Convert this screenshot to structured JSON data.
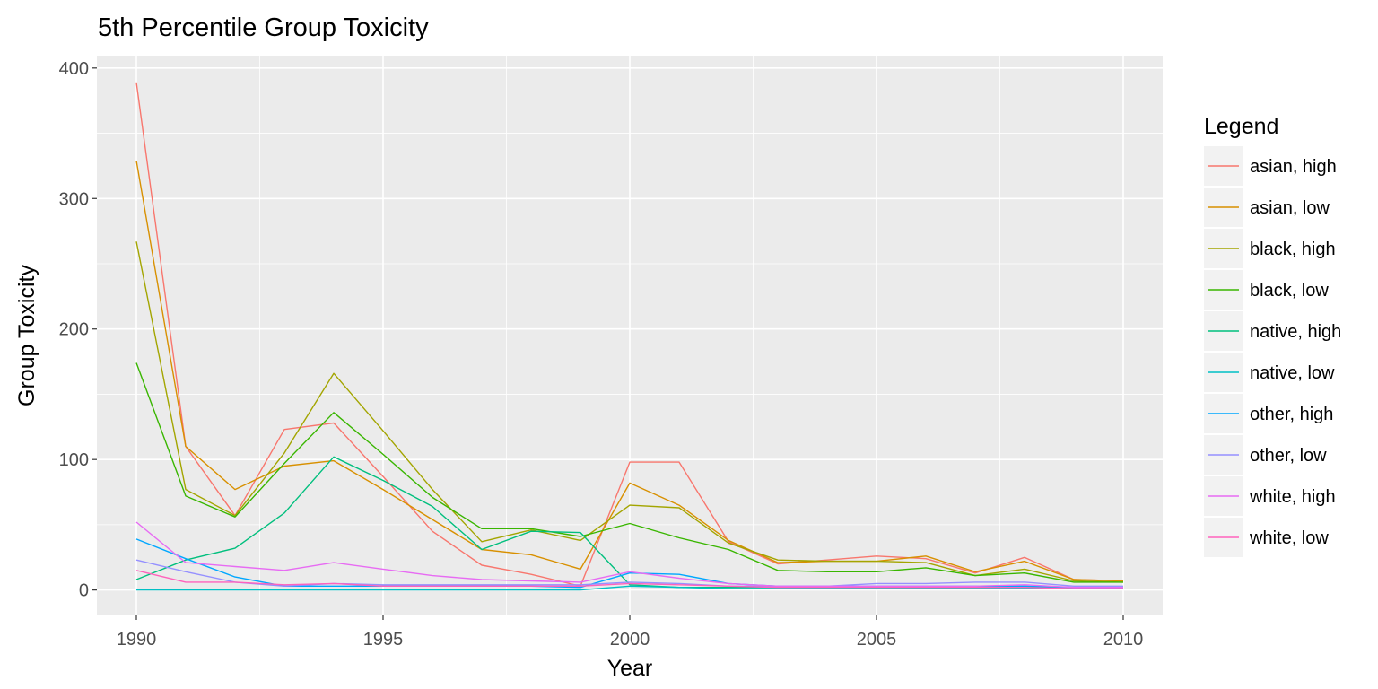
{
  "chart_data": {
    "type": "line",
    "title": "5th Percentile Group Toxicity",
    "xlabel": "Year",
    "ylabel": "Group Toxicity",
    "xlim": [
      1989.2,
      2010.8
    ],
    "ylim": [
      -19.5,
      409.5
    ],
    "x_ticks": [
      1990,
      1995,
      2000,
      2005,
      2010
    ],
    "y_ticks": [
      0,
      100,
      200,
      300,
      400
    ],
    "grid": true,
    "legend": {
      "title": "Legend",
      "placement": "right"
    },
    "x": [
      1990,
      1991,
      1992,
      1993,
      1994,
      1995,
      1996,
      1997,
      1998,
      1999,
      2000,
      2001,
      2002,
      2003,
      2004,
      2005,
      2006,
      2007,
      2008,
      2009,
      2010
    ],
    "series": [
      {
        "name": "asian, high",
        "color": "#F8766D",
        "values": [
          389,
          110,
          57,
          123,
          128,
          87,
          45,
          19,
          12,
          3,
          98,
          98,
          37,
          20,
          23,
          26,
          24,
          13,
          25,
          8,
          7
        ]
      },
      {
        "name": "asian, low",
        "color": "#D89000",
        "values": [
          329,
          110,
          77,
          95,
          99,
          77,
          54,
          31,
          27,
          16,
          82,
          65,
          38,
          21,
          22,
          22,
          26,
          14,
          22,
          8,
          7
        ]
      },
      {
        "name": "black, high",
        "color": "#A3A500",
        "values": [
          267,
          77,
          57,
          105,
          166,
          122,
          77,
          37,
          46,
          38,
          65,
          63,
          36,
          23,
          22,
          22,
          21,
          11,
          16,
          7,
          6
        ]
      },
      {
        "name": "black, low",
        "color": "#39B600",
        "values": [
          174,
          72,
          56,
          97,
          136,
          104,
          71,
          47,
          47,
          41,
          51,
          40,
          31,
          15,
          14,
          14,
          17,
          11,
          13,
          6,
          6
        ]
      },
      {
        "name": "native, high",
        "color": "#00BF7D",
        "values": [
          8,
          23,
          32,
          59,
          102,
          84,
          64,
          31,
          45,
          44,
          4,
          2,
          2,
          2,
          2,
          2,
          2,
          2,
          2,
          2,
          2
        ]
      },
      {
        "name": "native, low",
        "color": "#00BFC4",
        "values": [
          0,
          0,
          0,
          0,
          0,
          0,
          0,
          0,
          0,
          0,
          3,
          2,
          1,
          1,
          1,
          1,
          1,
          1,
          1,
          1,
          1
        ]
      },
      {
        "name": "other, high",
        "color": "#00A7FF",
        "values": [
          39,
          24,
          10,
          3,
          3,
          3,
          3,
          3,
          3,
          2,
          13,
          12,
          5,
          3,
          3,
          3,
          3,
          3,
          3,
          2,
          2
        ]
      },
      {
        "name": "other, low",
        "color": "#9590FF",
        "values": [
          23,
          14,
          6,
          3,
          5,
          4,
          4,
          4,
          4,
          4,
          6,
          5,
          3,
          3,
          3,
          5,
          5,
          6,
          6,
          3,
          3
        ]
      },
      {
        "name": "white, high",
        "color": "#E76BF3",
        "values": [
          52,
          21,
          18,
          15,
          21,
          16,
          11,
          8,
          7,
          6,
          14,
          9,
          5,
          3,
          3,
          3,
          3,
          3,
          4,
          2,
          2
        ]
      },
      {
        "name": "white, low",
        "color": "#FF62BC",
        "values": [
          15,
          6,
          6,
          4,
          5,
          3,
          3,
          3,
          3,
          3,
          5,
          4,
          3,
          2,
          2,
          2,
          2,
          2,
          2,
          1,
          1
        ]
      }
    ]
  }
}
